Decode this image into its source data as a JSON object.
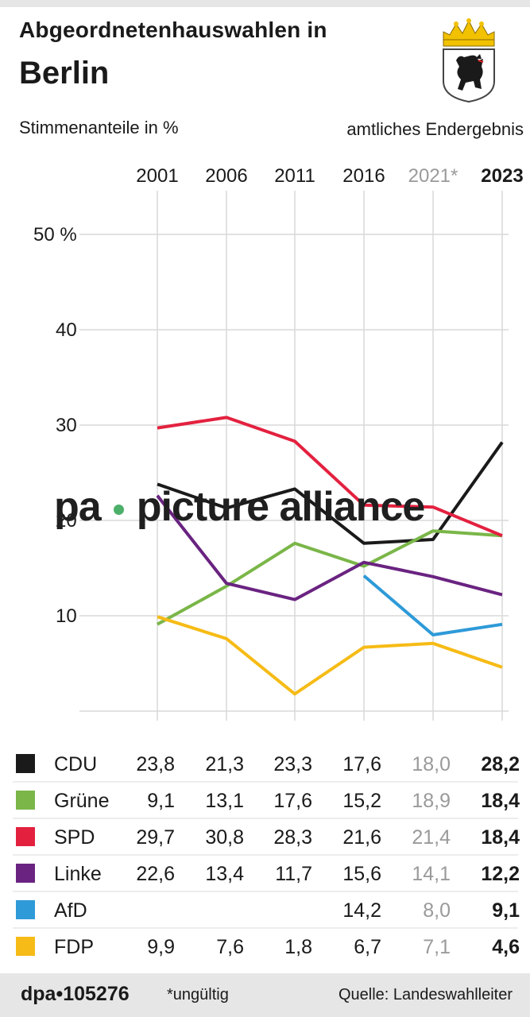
{
  "header": {
    "title": "Abgeordnetenhauswahlen in",
    "title_line2": "Berlin",
    "subtitle": "Stimmenanteile in %",
    "status": "amtliches Endergebnis"
  },
  "watermark": {
    "left": "pa",
    "right": "picture alliance"
  },
  "footer": {
    "brand": "dpa•105276",
    "note": "*ungültig",
    "source": "Quelle: Landeswahlleiter"
  },
  "chart_data": {
    "type": "line",
    "x": [
      "2001",
      "2006",
      "2011",
      "2016",
      "2021*",
      "2023"
    ],
    "y_ticks": [
      "10",
      "20",
      "30",
      "40",
      "50 %"
    ],
    "y_tick_values": [
      10,
      20,
      30,
      40,
      50
    ],
    "ylim": [
      0,
      50
    ],
    "grid": true,
    "highlight_year": "2023",
    "invalid_year": "2021*",
    "series": [
      {
        "name": "CDU",
        "color": "#1a1a1a",
        "values": [
          23.8,
          21.3,
          23.3,
          17.6,
          18.0,
          28.2
        ],
        "labels": [
          "23,8",
          "21,3",
          "23,3",
          "17,6",
          "18,0",
          "28,2"
        ]
      },
      {
        "name": "Grüne",
        "color": "#7ab648",
        "values": [
          9.1,
          13.1,
          17.6,
          15.2,
          18.9,
          18.4
        ],
        "labels": [
          "9,1",
          "13,1",
          "17,6",
          "15,2",
          "18,9",
          "18,4"
        ]
      },
      {
        "name": "SPD",
        "color": "#e3213f",
        "values": [
          29.7,
          30.8,
          28.3,
          21.6,
          21.4,
          18.4
        ],
        "labels": [
          "29,7",
          "30,8",
          "28,3",
          "21,6",
          "21,4",
          "18,4"
        ]
      },
      {
        "name": "Linke",
        "color": "#6a2381",
        "values": [
          22.6,
          13.4,
          11.7,
          15.6,
          14.1,
          12.2
        ],
        "labels": [
          "22,6",
          "13,4",
          "11,7",
          "15,6",
          "14,1",
          "12,2"
        ]
      },
      {
        "name": "AfD",
        "color": "#2e9ad8",
        "values": [
          null,
          null,
          null,
          14.2,
          8.0,
          9.1
        ],
        "labels": [
          "",
          "",
          "",
          "14,2",
          "8,0",
          "9,1"
        ]
      },
      {
        "name": "FDP",
        "color": "#f6bb16",
        "values": [
          9.9,
          7.6,
          1.8,
          6.7,
          7.1,
          4.6
        ],
        "labels": [
          "9,9",
          "7,6",
          "1,8",
          "6,7",
          "7,1",
          "4,6"
        ]
      }
    ]
  }
}
